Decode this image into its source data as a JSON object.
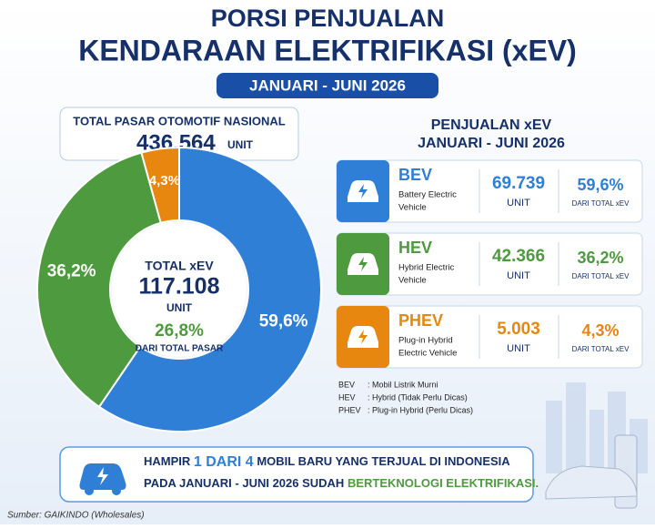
{
  "header": {
    "title_line1": "PORSI PENJUALAN",
    "title_line2": "KENDARAAN ELEKTRIFIKASI (xEV)",
    "period": "JANUARI - JUNI 2026"
  },
  "market": {
    "label": "TOTAL PASAR OTOMOTIF NASIONAL",
    "value": "436.564",
    "unit": "UNIT"
  },
  "chart_data": {
    "type": "pie",
    "donut": true,
    "categories": [
      "BEV",
      "HEV",
      "PHEV"
    ],
    "values": [
      59.6,
      36.2,
      4.3
    ],
    "value_labels": [
      "59,6%",
      "36,2%",
      "4,3%"
    ],
    "colors": [
      "#2f7fd6",
      "#4e9a3e",
      "#e8870f"
    ]
  },
  "center": {
    "label": "TOTAL xEV",
    "value": "117.108",
    "unit": "UNIT",
    "share": "26,8%",
    "share_label": "DARI TOTAL PASAR"
  },
  "panel": {
    "title_line1": "PENJUALAN xEV",
    "title_line2": "JANUARI - JUNI 2026",
    "rows": [
      {
        "code": "BEV",
        "name_line1": "Battery Electric",
        "name_line2": "Vehicle",
        "units": "69.739",
        "unit_label": "UNIT",
        "share": "59,6%",
        "share_label": "DARI TOTAL xEV"
      },
      {
        "code": "HEV",
        "name_line1": "Hybrid Electric",
        "name_line2": "Vehicle",
        "units": "42.366",
        "unit_label": "UNIT",
        "share": "36,2%",
        "share_label": "DARI TOTAL xEV"
      },
      {
        "code": "PHEV",
        "name_line1": "Plug-in Hybrid",
        "name_line2": "Electric Vehicle",
        "units": "5.003",
        "unit_label": "UNIT",
        "share": "4,3%",
        "share_label": "DARI TOTAL xEV"
      }
    ]
  },
  "notes": [
    {
      "code": "BEV",
      "text": ": Mobil Listrik Murni"
    },
    {
      "code": "HEV",
      "text": ": Hybrid (Tidak Perlu Dicas)"
    },
    {
      "code": "PHEV",
      "text": ": Plug-in Hybrid (Perlu Dicas)"
    }
  ],
  "banner": {
    "part1": "HAMPIR",
    "highlight1": "1 DARI 4",
    "part2": "MOBIL BARU YANG TERJUAL DI INDONESIA",
    "part3": "PADA JANUARI - JUNI 2026 SUDAH",
    "highlight2": "BERTEKNOLOGI ELEKTRIFIKASI."
  },
  "source": "Sumber: GAIKINDO (Wholesales)"
}
